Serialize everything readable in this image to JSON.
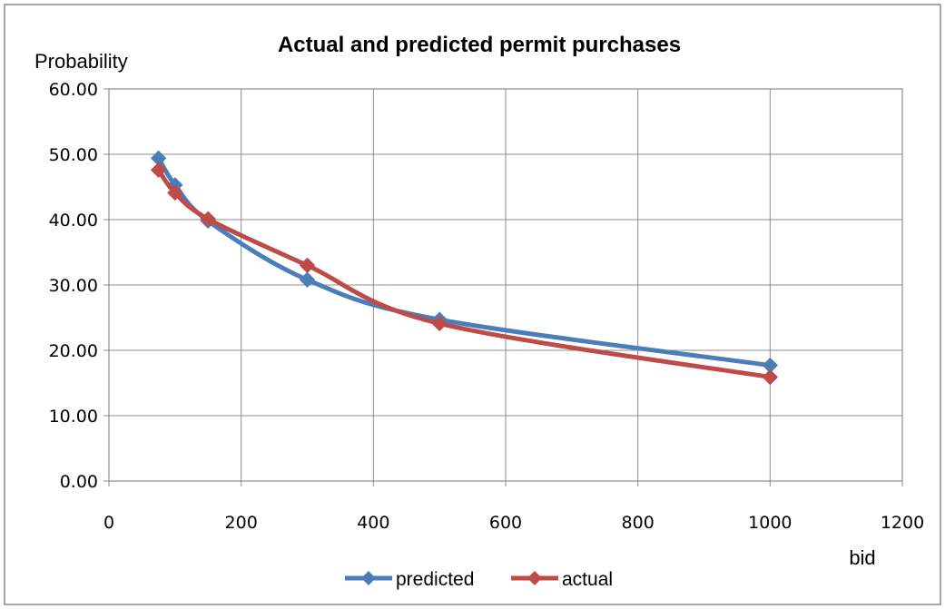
{
  "chart_data": {
    "type": "line",
    "title": "Actual and predicted permit purchases",
    "xlabel": "bid",
    "ylabel": "Probability",
    "xlim": [
      0,
      1200
    ],
    "ylim": [
      0,
      60
    ],
    "x_ticks": [
      "0",
      "200",
      "400",
      "600",
      "800",
      "1000",
      "1200"
    ],
    "y_ticks": [
      "0.00",
      "10.00",
      "20.00",
      "30.00",
      "40.00",
      "50.00",
      "60.00"
    ],
    "grid": true,
    "legend_position": "bottom",
    "series": [
      {
        "name": "predicted",
        "color": "#4a7ebb",
        "marker": "diamond",
        "x": [
          75,
          100,
          150,
          300,
          500,
          1000
        ],
        "y": [
          49.4,
          45.3,
          39.8,
          30.8,
          24.7,
          17.7
        ]
      },
      {
        "name": "actual",
        "color": "#be4b48",
        "marker": "diamond",
        "x": [
          75,
          100,
          150,
          300,
          500,
          1000
        ],
        "y": [
          47.6,
          44.1,
          40.1,
          33.0,
          24.1,
          15.9
        ]
      }
    ]
  }
}
